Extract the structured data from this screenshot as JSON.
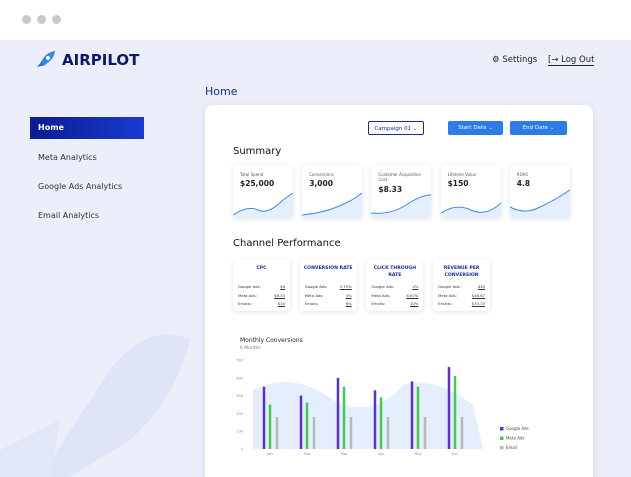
{
  "header": {
    "brand": "AIRPILOT",
    "settings": "Settings",
    "logout": "Log Out"
  },
  "sidebar": {
    "items": [
      "Home",
      "Meta Analytics",
      "Google Ads Analytics",
      "Email Analytics"
    ]
  },
  "page_title": "Home",
  "toolbar": {
    "campaign": "Campaign 01",
    "start": "Start Date",
    "end": "End Date"
  },
  "summary": {
    "title": "Summary",
    "cards": [
      {
        "label": "Total Spend",
        "value": "$25,000"
      },
      {
        "label": "Conversions",
        "value": "3,000"
      },
      {
        "label": "Customer Acquisition Cost",
        "value": "$8.33"
      },
      {
        "label": "Lifetime Value",
        "value": "$150"
      },
      {
        "label": "ROAS",
        "value": "4.8"
      }
    ]
  },
  "channel_performance": {
    "title": "Channel Performance",
    "cards": [
      {
        "title": "CPC",
        "rows": [
          {
            "label": "Google Ads:",
            "value": "$6"
          },
          {
            "label": "Meta Ads:",
            "value": "$8.33"
          },
          {
            "label": "Emails:",
            "value": "$10"
          }
        ]
      },
      {
        "title": "CONVERSION RATE",
        "rows": [
          {
            "label": "Google Ads:",
            "value": "3.75%"
          },
          {
            "label": "Meta Ads:",
            "value": "4%"
          },
          {
            "label": "Emails:",
            "value": "6%"
          }
        ]
      },
      {
        "title": "CLICK THROUGH RATE",
        "rows": [
          {
            "label": "Google Ads:",
            "value": "4%"
          },
          {
            "label": "Meta Ads:",
            "value": "6.67%"
          },
          {
            "label": "Emails:",
            "value": "10%"
          }
        ]
      },
      {
        "title": "REVENUE PER CONVERSION",
        "rows": [
          {
            "label": "Google Ads:",
            "value": "$40"
          },
          {
            "label": "Meta Ads:",
            "value": "$48.67"
          },
          {
            "label": "Emails:",
            "value": "$33.33"
          }
        ]
      }
    ]
  },
  "chart_data": {
    "type": "bar",
    "title": "Monthly Conversions",
    "subtitle": "6 Months",
    "categories": [
      "Jan",
      "Feb",
      "Mar",
      "Apr",
      "May",
      "Jun"
    ],
    "series": [
      {
        "name": "Google Ads",
        "color": "#5b2fd1",
        "values": [
          350,
          300,
          400,
          330,
          380,
          460
        ]
      },
      {
        "name": "Meta Ads",
        "color": "#3ecf4a",
        "values": [
          250,
          260,
          350,
          290,
          350,
          410
        ]
      },
      {
        "name": "Email",
        "color": "#b8b8b8",
        "values": [
          180,
          180,
          180,
          180,
          180,
          180
        ]
      }
    ],
    "ylim": [
      0,
      500
    ],
    "yticks": [
      0,
      100,
      200,
      300,
      400,
      500
    ]
  }
}
